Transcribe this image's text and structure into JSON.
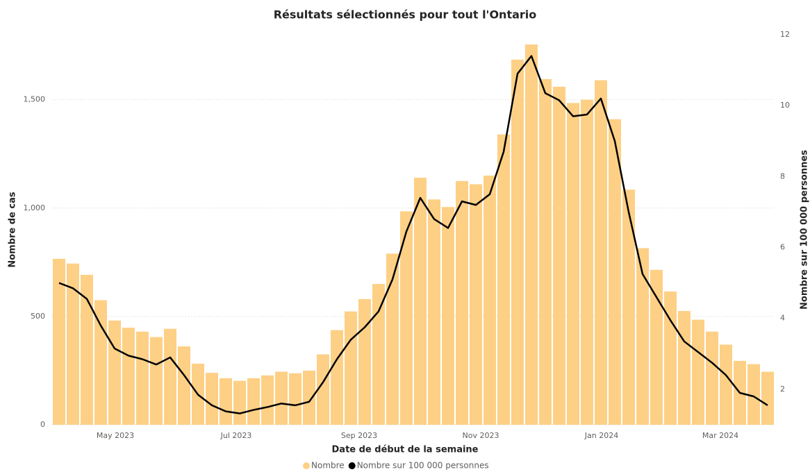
{
  "chart_data": {
    "type": "bar_line",
    "title": "Résultats sélectionnés pour tout l'Ontario",
    "x_label": "Date de début de la semaine",
    "y_label": "Nombre de cas",
    "y2_label": "Nombre sur 100 000 personnes",
    "categories": [
      null,
      null,
      null,
      null,
      null,
      null,
      null,
      null,
      null,
      null,
      null,
      null,
      null,
      null,
      null,
      null,
      null,
      null,
      null,
      null,
      null,
      null,
      null,
      null,
      null,
      null,
      null,
      null,
      null,
      null,
      null,
      null,
      null,
      null,
      null,
      null,
      null,
      null,
      null,
      null,
      null,
      null,
      null,
      null,
      null,
      null,
      null,
      null,
      null,
      null,
      null,
      null
    ],
    "xlim": [
      0,
      52
    ],
    "xticks": [
      {
        "value": 4.55,
        "label": "May 2023"
      },
      {
        "value": 13.25,
        "label": "Jul 2023"
      },
      {
        "value": 22.1,
        "label": "Sep 2023"
      },
      {
        "value": 30.85,
        "label": "Nov 2023"
      },
      {
        "value": 39.55,
        "label": "Jan 2024"
      },
      {
        "value": 48.1,
        "label": "Mar 2024"
      }
    ],
    "ylim": [
      0,
      1800
    ],
    "yticks": [
      0,
      500,
      {
        "value": 1000,
        "label": "1,000"
      },
      {
        "value": 1500,
        "label": "1,500"
      }
    ],
    "y2lim": [
      1,
      12
    ],
    "y2ticks": [
      2,
      4,
      6,
      8,
      10,
      12
    ],
    "grid": true,
    "legend": "bottom",
    "series": [
      {
        "name": "Nombre",
        "type": "bar",
        "color": "#fdd086",
        "values": [
          766,
          744,
          692,
          575,
          481,
          448,
          430,
          405,
          443,
          362,
          282,
          240,
          215,
          203,
          215,
          228,
          245,
          238,
          250,
          325,
          437,
          523,
          580,
          650,
          790,
          985,
          1140,
          1040,
          1005,
          1125,
          1110,
          1150,
          1340,
          1685,
          1755,
          1595,
          1560,
          1485,
          1500,
          1590,
          1410,
          1085,
          815,
          715,
          615,
          525,
          485,
          430,
          370,
          295,
          280,
          245
        ]
      },
      {
        "name": "Nombre sur 100 000 personnes",
        "type": "line",
        "axis": "y2",
        "color": "#000000",
        "values": [
          5.0,
          4.85,
          4.55,
          3.8,
          3.15,
          2.95,
          2.85,
          2.7,
          2.9,
          2.4,
          1.85,
          1.55,
          1.38,
          1.32,
          1.42,
          1.5,
          1.6,
          1.55,
          1.65,
          2.2,
          2.85,
          3.4,
          3.75,
          4.2,
          5.1,
          6.45,
          7.4,
          6.8,
          6.55,
          7.3,
          7.2,
          7.5,
          8.7,
          10.9,
          11.4,
          10.35,
          10.15,
          9.7,
          9.75,
          10.2,
          9.0,
          7.0,
          5.25,
          4.6,
          3.95,
          3.35,
          3.05,
          2.75,
          2.4,
          1.9,
          1.8,
          1.55
        ]
      }
    ]
  }
}
